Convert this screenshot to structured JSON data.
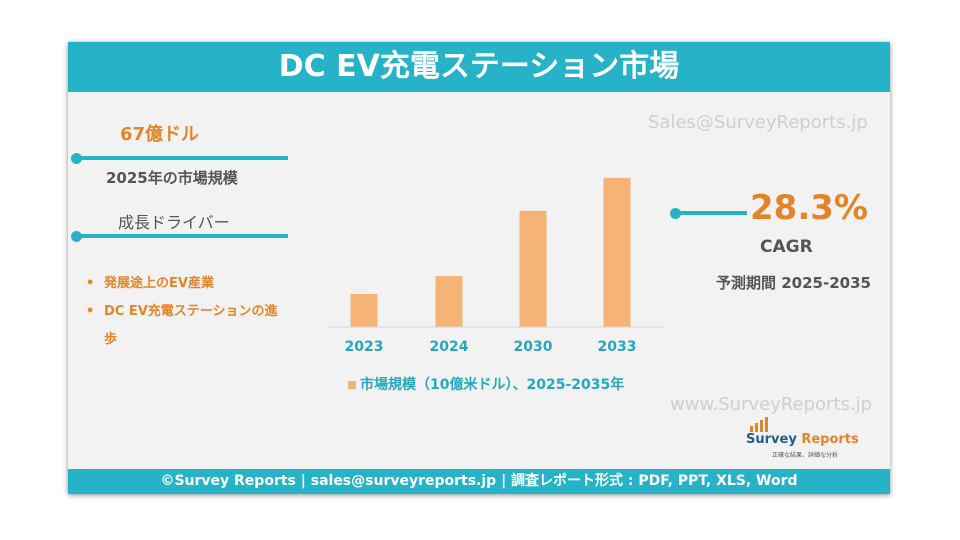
{
  "title": "DC EV充電ステーション市場",
  "market_size": {
    "value": "67億ドル",
    "label": "2025年の市場規模"
  },
  "drivers": {
    "heading": "成長ドライバー",
    "items": [
      "発展途上のEV産業",
      "DC EV充電ステーションの進歩"
    ]
  },
  "cagr": {
    "value": "28.3%",
    "label": "CAGR",
    "period": "予測期間 2025-2035"
  },
  "watermarks": [
    "Sales@SurveyReports.jp",
    "www.SurveyReports.jp"
  ],
  "logo": {
    "name_part1": "Survey",
    "name_part2": " Reports",
    "tagline": "正確な結果、詳細な分析"
  },
  "footer": "©Survey Reports | sales@surveyreports.jp | 調査レポート形式 : PDF, PPT, XLS, Word",
  "colors": {
    "teal": "#26b3c7",
    "orange": "#e2852a",
    "bar": "#f5b375",
    "background": "#f2f2f2"
  },
  "chart_data": {
    "type": "bar",
    "categories": [
      "2023",
      "2024",
      "2030",
      "2033"
    ],
    "series": [
      {
        "name": "市場規模（10億米ドル）、2025-2035年",
        "values": [
          5.0,
          7.7,
          17.6,
          22.6
        ]
      }
    ],
    "ylim": [
      0,
      25
    ],
    "grid": false,
    "legend": "bottom"
  }
}
